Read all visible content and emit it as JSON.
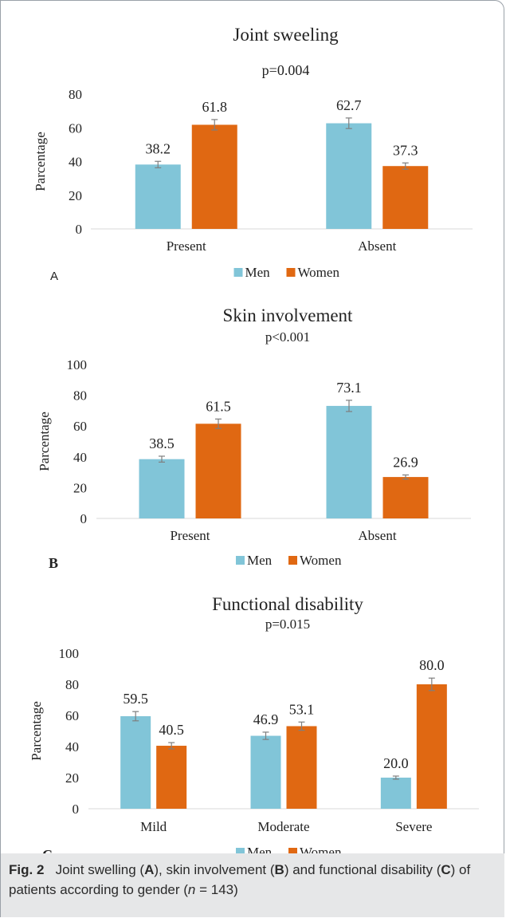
{
  "colors": {
    "men": "#81c5d8",
    "women": "#e06812",
    "axis_text": "#222222",
    "error_bar": "#7f7f7f"
  },
  "chart_data": [
    {
      "type": "bar",
      "panel": "A",
      "title": "Joint sweeling",
      "subtitle": "p=0.004",
      "ylabel": "Parcentage",
      "xlabel": "",
      "ylim": [
        0,
        80
      ],
      "yticks": [
        0,
        20,
        40,
        60,
        80
      ],
      "grid": false,
      "legend": "bottom",
      "categories": [
        "Present",
        "Absent"
      ],
      "series": [
        {
          "name": "Men",
          "values": [
            38.2,
            62.7
          ],
          "labels": [
            "38.2",
            "62.7"
          ]
        },
        {
          "name": "Women",
          "values": [
            61.8,
            37.3
          ],
          "labels": [
            "61.8",
            "37.3"
          ]
        }
      ]
    },
    {
      "type": "bar",
      "panel": "B",
      "title": "Skin involvement",
      "subtitle": "p<0.001",
      "ylabel": "Parcentage",
      "xlabel": "",
      "ylim": [
        0,
        100
      ],
      "yticks": [
        0,
        20,
        40,
        60,
        80,
        100
      ],
      "grid": false,
      "legend": "bottom",
      "categories": [
        "Present",
        "Absent"
      ],
      "series": [
        {
          "name": "Men",
          "values": [
            38.5,
            73.1
          ],
          "labels": [
            "38.5",
            "73.1"
          ]
        },
        {
          "name": "Women",
          "values": [
            61.5,
            26.9
          ],
          "labels": [
            "61.5",
            "26.9"
          ]
        }
      ]
    },
    {
      "type": "bar",
      "panel": "C",
      "title": "Functional disability",
      "subtitle": "p=0.015",
      "ylabel": "Parcentage",
      "xlabel": "",
      "ylim": [
        0,
        100
      ],
      "yticks": [
        0,
        20,
        40,
        60,
        80,
        100
      ],
      "grid": false,
      "legend": "bottom",
      "categories": [
        "Mild",
        "Moderate",
        "Severe"
      ],
      "series": [
        {
          "name": "Men",
          "values": [
            59.5,
            46.9,
            20.0
          ],
          "labels": [
            "59.5",
            "46.9",
            "20.0"
          ]
        },
        {
          "name": "Women",
          "values": [
            40.5,
            53.1,
            80.0
          ],
          "labels": [
            "40.5",
            "53.1",
            "80.0"
          ]
        }
      ]
    }
  ],
  "caption": {
    "fig_label": "Fig. 2",
    "text_parts": [
      "Joint swelling (",
      "A",
      "), skin involvement (",
      "B",
      ") and functional disability (",
      "C",
      ") of patients according to gender (",
      "n",
      " = 143)"
    ]
  }
}
